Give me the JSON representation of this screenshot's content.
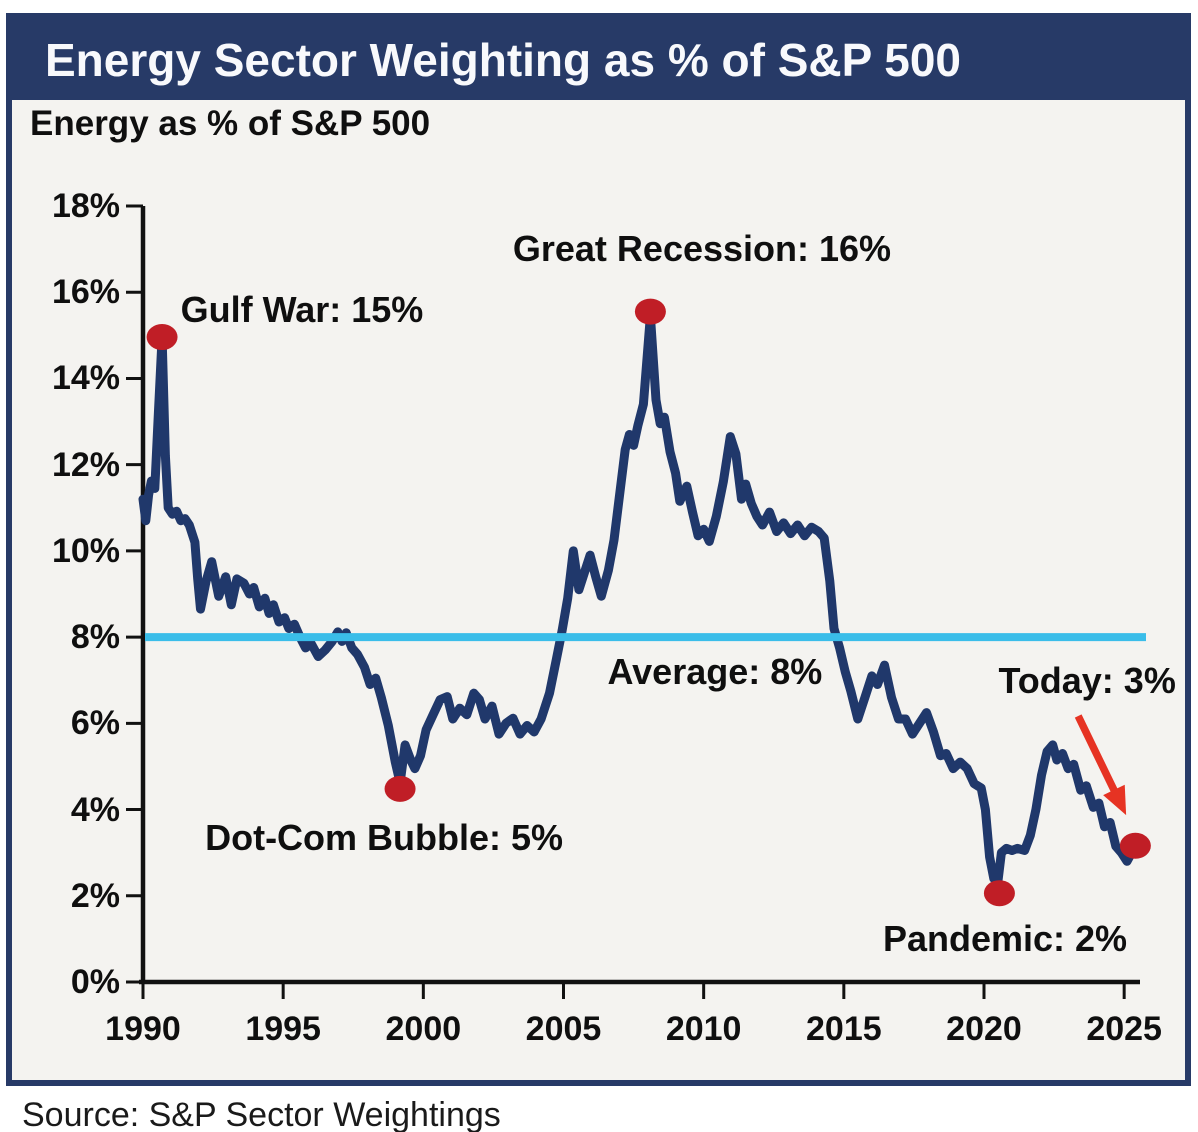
{
  "header": {
    "title": "Energy Sector Weighting as % of S&P 500"
  },
  "source_note": "Source: S&P Sector Weightings",
  "colors": {
    "header_bg": "#273a67",
    "frame_border": "#273a67",
    "chart_bg": "#f4f3f0",
    "line": "#20386b",
    "average": "#3abde9",
    "marker": "#c01e26",
    "arrow": "#e63323",
    "axis": "#111111",
    "text": "#0f0f0f",
    "title_text": "#f8f9fc"
  },
  "chart_data": {
    "type": "line",
    "title": "Energy as % of S&P 500",
    "xlabel": "",
    "ylabel": "Energy as % of S&P 500",
    "grid": false,
    "legend": "none",
    "x_axis": {
      "min": 1990,
      "max": 2026.1,
      "ticks": [
        1990,
        1995,
        2000,
        2005,
        2010,
        2015,
        2020,
        2025
      ],
      "tick_labels": [
        "1990",
        "1995",
        "2000",
        "2005",
        "2010",
        "2015",
        "2020",
        "2025"
      ]
    },
    "y_axis": {
      "min": 0,
      "max": 18,
      "ticks": [
        0,
        2,
        4,
        6,
        8,
        10,
        12,
        14,
        16,
        18
      ],
      "tick_labels": [
        "0%",
        "2%",
        "4%",
        "6%",
        "8%",
        "10%",
        "12%",
        "14%",
        "16%",
        "18%"
      ]
    },
    "average_line": {
      "value": 8,
      "label": "Average: 8%"
    },
    "series": [
      {
        "name": "Energy sector weighting as % of S&P 500",
        "points": [
          [
            1990.0,
            11.2
          ],
          [
            1990.1,
            10.7
          ],
          [
            1990.2,
            11.3
          ],
          [
            1990.3,
            11.62
          ],
          [
            1990.42,
            11.45
          ],
          [
            1990.55,
            13.2
          ],
          [
            1990.68,
            14.95
          ],
          [
            1990.8,
            12.2
          ],
          [
            1990.9,
            11.0
          ],
          [
            1991.05,
            10.85
          ],
          [
            1991.2,
            10.92
          ],
          [
            1991.35,
            10.7
          ],
          [
            1991.5,
            10.75
          ],
          [
            1991.65,
            10.6
          ],
          [
            1991.85,
            10.2
          ],
          [
            1991.95,
            9.35
          ],
          [
            1992.05,
            8.65
          ],
          [
            1992.25,
            9.3
          ],
          [
            1992.45,
            9.75
          ],
          [
            1992.7,
            8.95
          ],
          [
            1992.95,
            9.4
          ],
          [
            1993.15,
            8.75
          ],
          [
            1993.35,
            9.35
          ],
          [
            1993.6,
            9.25
          ],
          [
            1993.8,
            9.0
          ],
          [
            1993.95,
            9.15
          ],
          [
            1994.15,
            8.7
          ],
          [
            1994.35,
            8.9
          ],
          [
            1994.5,
            8.55
          ],
          [
            1994.65,
            8.75
          ],
          [
            1994.85,
            8.35
          ],
          [
            1995.05,
            8.45
          ],
          [
            1995.2,
            8.2
          ],
          [
            1995.4,
            8.3
          ],
          [
            1995.6,
            8.0
          ],
          [
            1995.8,
            7.75
          ],
          [
            1996.0,
            7.85
          ],
          [
            1996.25,
            7.55
          ],
          [
            1996.5,
            7.7
          ],
          [
            1996.75,
            7.9
          ],
          [
            1996.95,
            8.12
          ],
          [
            1997.1,
            7.9
          ],
          [
            1997.25,
            8.1
          ],
          [
            1997.45,
            7.75
          ],
          [
            1997.65,
            7.6
          ],
          [
            1997.9,
            7.3
          ],
          [
            1998.1,
            6.9
          ],
          [
            1998.3,
            7.05
          ],
          [
            1998.5,
            6.6
          ],
          [
            1998.75,
            5.95
          ],
          [
            1999.0,
            5.1
          ],
          [
            1999.17,
            4.62
          ],
          [
            1999.35,
            5.5
          ],
          [
            1999.55,
            5.15
          ],
          [
            1999.7,
            4.95
          ],
          [
            1999.9,
            5.25
          ],
          [
            2000.1,
            5.85
          ],
          [
            2000.35,
            6.2
          ],
          [
            2000.6,
            6.55
          ],
          [
            2000.85,
            6.62
          ],
          [
            2001.05,
            6.1
          ],
          [
            2001.3,
            6.35
          ],
          [
            2001.55,
            6.2
          ],
          [
            2001.8,
            6.7
          ],
          [
            2002.0,
            6.55
          ],
          [
            2002.2,
            6.1
          ],
          [
            2002.45,
            6.4
          ],
          [
            2002.7,
            5.75
          ],
          [
            2002.95,
            6.0
          ],
          [
            2003.2,
            6.12
          ],
          [
            2003.45,
            5.75
          ],
          [
            2003.7,
            5.95
          ],
          [
            2003.95,
            5.8
          ],
          [
            2004.2,
            6.1
          ],
          [
            2004.5,
            6.7
          ],
          [
            2004.75,
            7.5
          ],
          [
            2004.95,
            8.15
          ],
          [
            2005.15,
            8.9
          ],
          [
            2005.35,
            10.0
          ],
          [
            2005.55,
            9.1
          ],
          [
            2005.75,
            9.5
          ],
          [
            2005.95,
            9.9
          ],
          [
            2006.15,
            9.4
          ],
          [
            2006.35,
            8.95
          ],
          [
            2006.6,
            9.55
          ],
          [
            2006.8,
            10.25
          ],
          [
            2007.0,
            11.3
          ],
          [
            2007.2,
            12.35
          ],
          [
            2007.35,
            12.7
          ],
          [
            2007.5,
            12.45
          ],
          [
            2007.65,
            12.9
          ],
          [
            2007.85,
            13.4
          ],
          [
            2008.1,
            15.45
          ],
          [
            2008.3,
            13.5
          ],
          [
            2008.45,
            12.95
          ],
          [
            2008.6,
            13.1
          ],
          [
            2008.8,
            12.3
          ],
          [
            2009.0,
            11.8
          ],
          [
            2009.15,
            11.15
          ],
          [
            2009.4,
            11.5
          ],
          [
            2009.6,
            10.9
          ],
          [
            2009.8,
            10.35
          ],
          [
            2010.0,
            10.5
          ],
          [
            2010.2,
            10.22
          ],
          [
            2010.45,
            10.8
          ],
          [
            2010.7,
            11.6
          ],
          [
            2010.95,
            12.65
          ],
          [
            2011.15,
            12.25
          ],
          [
            2011.35,
            11.2
          ],
          [
            2011.5,
            11.55
          ],
          [
            2011.7,
            11.1
          ],
          [
            2011.9,
            10.8
          ],
          [
            2012.1,
            10.6
          ],
          [
            2012.35,
            10.9
          ],
          [
            2012.6,
            10.45
          ],
          [
            2012.85,
            10.65
          ],
          [
            2013.1,
            10.4
          ],
          [
            2013.35,
            10.6
          ],
          [
            2013.6,
            10.35
          ],
          [
            2013.85,
            10.55
          ],
          [
            2014.1,
            10.45
          ],
          [
            2014.3,
            10.3
          ],
          [
            2014.5,
            9.3
          ],
          [
            2014.65,
            8.2
          ],
          [
            2014.85,
            7.75
          ],
          [
            2015.05,
            7.2
          ],
          [
            2015.25,
            6.75
          ],
          [
            2015.5,
            6.1
          ],
          [
            2015.75,
            6.6
          ],
          [
            2016.0,
            7.1
          ],
          [
            2016.2,
            6.9
          ],
          [
            2016.45,
            7.35
          ],
          [
            2016.7,
            6.6
          ],
          [
            2016.95,
            6.1
          ],
          [
            2017.2,
            6.1
          ],
          [
            2017.45,
            5.75
          ],
          [
            2017.7,
            6.0
          ],
          [
            2017.95,
            6.25
          ],
          [
            2018.2,
            5.8
          ],
          [
            2018.45,
            5.25
          ],
          [
            2018.65,
            5.3
          ],
          [
            2018.9,
            4.95
          ],
          [
            2019.15,
            5.1
          ],
          [
            2019.4,
            4.95
          ],
          [
            2019.65,
            4.6
          ],
          [
            2019.9,
            4.5
          ],
          [
            2020.05,
            4.0
          ],
          [
            2020.2,
            2.9
          ],
          [
            2020.35,
            2.4
          ],
          [
            2020.5,
            2.35
          ],
          [
            2020.62,
            3.0
          ],
          [
            2020.8,
            3.1
          ],
          [
            2021.0,
            3.05
          ],
          [
            2021.2,
            3.1
          ],
          [
            2021.45,
            3.05
          ],
          [
            2021.65,
            3.4
          ],
          [
            2021.85,
            4.0
          ],
          [
            2022.05,
            4.8
          ],
          [
            2022.25,
            5.35
          ],
          [
            2022.45,
            5.5
          ],
          [
            2022.6,
            5.15
          ],
          [
            2022.8,
            5.3
          ],
          [
            2023.0,
            4.95
          ],
          [
            2023.2,
            5.05
          ],
          [
            2023.45,
            4.45
          ],
          [
            2023.65,
            4.55
          ],
          [
            2023.9,
            4.05
          ],
          [
            2024.1,
            4.15
          ],
          [
            2024.3,
            3.6
          ],
          [
            2024.5,
            3.7
          ],
          [
            2024.7,
            3.15
          ],
          [
            2024.9,
            3.0
          ],
          [
            2025.1,
            2.8
          ],
          [
            2025.4,
            3.16
          ]
        ]
      }
    ],
    "markers": [
      {
        "label": "Gulf War peak",
        "x": 1990.68,
        "y": 14.96
      },
      {
        "label": "Great Recession peak",
        "x": 2008.1,
        "y": 15.55
      },
      {
        "label": "Dot-Com Bubble low",
        "x": 1999.17,
        "y": 4.48
      },
      {
        "label": "Pandemic low",
        "x": 2020.55,
        "y": 2.06
      },
      {
        "label": "Today",
        "x": 2025.4,
        "y": 3.16
      }
    ],
    "annotations": {
      "gulf_war": {
        "text": "Gulf War: 15%",
        "x": 1995.67,
        "y": 15.59
      },
      "great_recession": {
        "text": "Great Recession: 16%",
        "x": 2009.94,
        "y": 17.0
      },
      "average": {
        "text": "Average: 8%",
        "x": 2010.4,
        "y": 7.19
      },
      "dot_com": {
        "text": "Dot-Com Bubble: 5%",
        "x": 1998.6,
        "y": 3.34
      },
      "pandemic": {
        "text": "Pandemic: 2%",
        "x": 2020.75,
        "y": 1.0
      },
      "today": {
        "text": "Today: 3%",
        "x": 2023.68,
        "y": 6.98
      }
    },
    "arrow": {
      "from": [
        2023.36,
        6.17
      ],
      "to": [
        2025.07,
        3.87
      ]
    }
  }
}
